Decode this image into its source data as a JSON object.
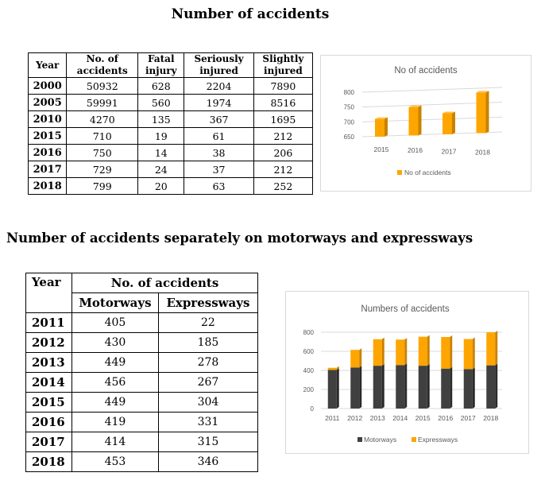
{
  "titles": {
    "main": "Number of accidents",
    "section2": "Number of accidents separately on motorways and expressways"
  },
  "table1": {
    "headers": [
      "Year",
      "No. of accidents",
      "Fatal injury",
      "Seriously injured",
      "Slightly injured"
    ],
    "headers_lines": [
      [
        "Year"
      ],
      [
        "No. of",
        "accidents"
      ],
      [
        "Fatal",
        "injury"
      ],
      [
        "Seriously",
        "injured"
      ],
      [
        "Slightly",
        "injured"
      ]
    ],
    "rows": [
      [
        "2000",
        "50932",
        "628",
        "2204",
        "7890"
      ],
      [
        "2005",
        "59991",
        "560",
        "1974",
        "8516"
      ],
      [
        "2010",
        "4270",
        "135",
        "367",
        "1695"
      ],
      [
        "2015",
        "710",
        "19",
        "61",
        "212"
      ],
      [
        "2016",
        "750",
        "14",
        "38",
        "206"
      ],
      [
        "2017",
        "729",
        "24",
        "37",
        "212"
      ],
      [
        "2018",
        "799",
        "20",
        "63",
        "252"
      ]
    ]
  },
  "table2": {
    "year_header": "Year",
    "group_header": "No. of accidents",
    "sub_headers": [
      "Motorways",
      "Expressways"
    ],
    "rows": [
      [
        "2011",
        "405",
        "22"
      ],
      [
        "2012",
        "430",
        "185"
      ],
      [
        "2013",
        "449",
        "278"
      ],
      [
        "2014",
        "456",
        "267"
      ],
      [
        "2015",
        "449",
        "304"
      ],
      [
        "2016",
        "419",
        "331"
      ],
      [
        "2017",
        "414",
        "315"
      ],
      [
        "2018",
        "453",
        "346"
      ]
    ]
  },
  "chart_data": [
    {
      "type": "bar",
      "title": "No of accidents",
      "categories": [
        "2015",
        "2016",
        "2017",
        "2018"
      ],
      "series": [
        {
          "name": "No of accidents",
          "values": [
            710,
            750,
            729,
            799
          ]
        }
      ],
      "ylim": [
        650,
        800
      ],
      "yticks": [
        650,
        700,
        750,
        800
      ],
      "legend": "bottom",
      "colors": {
        "bar": "#FFA500",
        "bar_side": "#C98200",
        "grid": "#d9d9d9"
      }
    },
    {
      "type": "bar",
      "stacked": true,
      "title": "Numbers of accidents",
      "categories": [
        "2011",
        "2012",
        "2013",
        "2014",
        "2015",
        "2016",
        "2017",
        "2018"
      ],
      "series": [
        {
          "name": "Motorways",
          "values": [
            405,
            430,
            449,
            456,
            449,
            419,
            414,
            453
          ]
        },
        {
          "name": "Expressways",
          "values": [
            22,
            185,
            278,
            267,
            304,
            331,
            315,
            346
          ]
        }
      ],
      "ylim": [
        0,
        800
      ],
      "yticks": [
        0,
        200,
        400,
        600,
        800
      ],
      "legend": "bottom",
      "colors": {
        "Motorways": "#404040",
        "Expressways": "#FFA500",
        "grid": "#d9d9d9"
      }
    }
  ]
}
